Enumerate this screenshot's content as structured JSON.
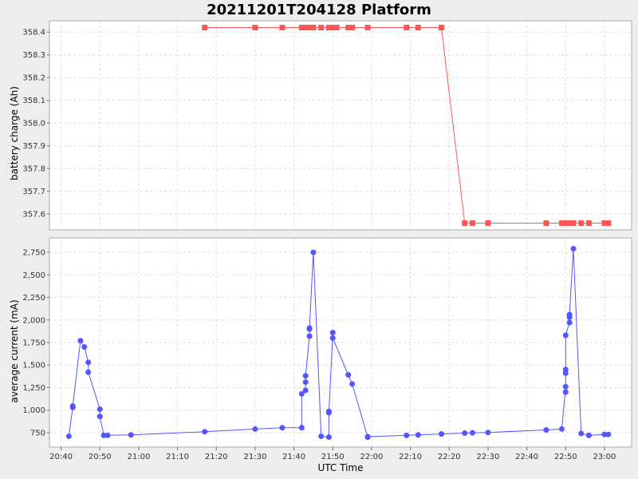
{
  "chart_data": {
    "type": "line",
    "title": "20211201T204128 Platform",
    "xlabel": "UTC Time",
    "colors": {
      "battery": "#ff5555",
      "current": "#5555ff",
      "plot_bg": "#ffffff",
      "grid": "#dddddd"
    },
    "x_ticks": [
      "20:40",
      "20:50",
      "21:00",
      "21:10",
      "21:20",
      "21:30",
      "21:40",
      "21:50",
      "22:00",
      "22:10",
      "22:20",
      "22:30",
      "22:40",
      "22:50",
      "23:00"
    ],
    "xlim": [
      "20:37",
      "23:07"
    ],
    "grid": true,
    "panels": [
      {
        "name": "battery",
        "ylabel": "battery charge (Ah)",
        "ylim": [
          357.53,
          358.45
        ],
        "y_ticks": [
          "357.6",
          "357.7",
          "357.8",
          "357.9",
          "358.0",
          "358.1",
          "358.2",
          "358.3",
          "358.4"
        ],
        "marker": "square",
        "points": [
          [
            "21:17",
            358.42
          ],
          [
            "21:30",
            358.42
          ],
          [
            "21:37",
            358.42
          ],
          [
            "21:42",
            358.42
          ],
          [
            "21:43",
            358.42
          ],
          [
            "21:44",
            358.42
          ],
          [
            "21:45",
            358.42
          ],
          [
            "21:47",
            358.42
          ],
          [
            "21:49",
            358.42
          ],
          [
            "21:50",
            358.42
          ],
          [
            "21:51",
            358.42
          ],
          [
            "21:54",
            358.42
          ],
          [
            "21:55",
            358.42
          ],
          [
            "21:59",
            358.42
          ],
          [
            "22:09",
            358.42
          ],
          [
            "22:12",
            358.42
          ],
          [
            "22:18",
            358.42
          ],
          [
            "22:24",
            357.56
          ],
          [
            "22:26",
            357.56
          ],
          [
            "22:30",
            357.56
          ],
          [
            "22:45",
            357.56
          ],
          [
            "22:49",
            357.56
          ],
          [
            "22:50",
            357.56
          ],
          [
            "22:51",
            357.56
          ],
          [
            "22:52",
            357.56
          ],
          [
            "22:54",
            357.56
          ],
          [
            "22:56",
            357.56
          ],
          [
            "23:00",
            357.56
          ],
          [
            "23:01",
            357.56
          ]
        ]
      },
      {
        "name": "current",
        "ylabel": "average current (mA)",
        "ylim": [
          590,
          2910
        ],
        "y_ticks": [
          "750",
          "1,000",
          "1,250",
          "1,500",
          "1,750",
          "2,000",
          "2,250",
          "2,500",
          "2,750"
        ],
        "marker": "circle",
        "points": [
          [
            "20:42",
            710
          ],
          [
            "20:43",
            1030
          ],
          [
            "20:43",
            1045
          ],
          [
            "20:45",
            1770
          ],
          [
            "20:46",
            1700
          ],
          [
            "20:47",
            1530
          ],
          [
            "20:47",
            1420
          ],
          [
            "20:50",
            1010
          ],
          [
            "20:50",
            930
          ],
          [
            "20:51",
            720
          ],
          [
            "20:52",
            720
          ],
          [
            "20:58",
            725
          ],
          [
            "21:17",
            760
          ],
          [
            "21:30",
            790
          ],
          [
            "21:37",
            805
          ],
          [
            "21:42",
            805
          ],
          [
            "21:42",
            1180
          ],
          [
            "21:43",
            1220
          ],
          [
            "21:43",
            1310
          ],
          [
            "21:43",
            1380
          ],
          [
            "21:44",
            1820
          ],
          [
            "21:44",
            1900
          ],
          [
            "21:44",
            1910
          ],
          [
            "21:45",
            2750
          ],
          [
            "21:47",
            710
          ],
          [
            "21:49",
            700
          ],
          [
            "21:49",
            985
          ],
          [
            "21:49",
            970
          ],
          [
            "21:50",
            1860
          ],
          [
            "21:50",
            1800
          ],
          [
            "21:54",
            1390
          ],
          [
            "21:55",
            1290
          ],
          [
            "21:59",
            700
          ],
          [
            "21:59",
            705
          ],
          [
            "22:09",
            720
          ],
          [
            "22:12",
            725
          ],
          [
            "22:18",
            735
          ],
          [
            "22:24",
            745
          ],
          [
            "22:26",
            748
          ],
          [
            "22:30",
            752
          ],
          [
            "22:45",
            780
          ],
          [
            "22:49",
            790
          ],
          [
            "22:50",
            1260
          ],
          [
            "22:50",
            1200
          ],
          [
            "22:50",
            1410
          ],
          [
            "22:50",
            1450
          ],
          [
            "22:50",
            1830
          ],
          [
            "22:51",
            1970
          ],
          [
            "22:51",
            2030
          ],
          [
            "22:51",
            2060
          ],
          [
            "22:52",
            2790
          ],
          [
            "22:54",
            740
          ],
          [
            "22:56",
            720
          ],
          [
            "22:56",
            720
          ],
          [
            "23:00",
            730
          ],
          [
            "23:01",
            730
          ]
        ]
      }
    ]
  }
}
